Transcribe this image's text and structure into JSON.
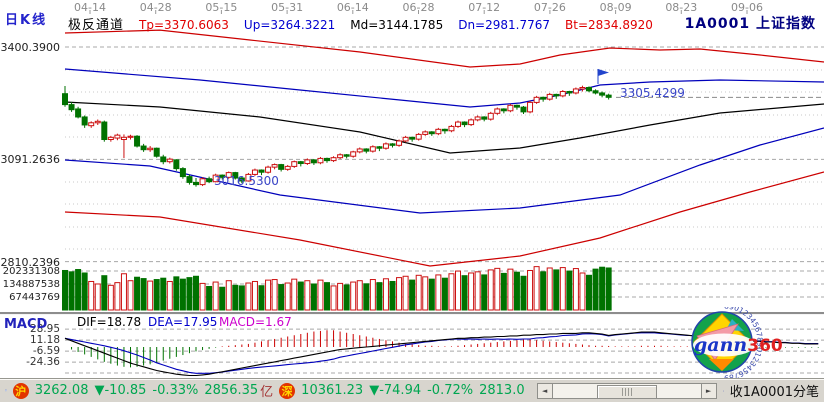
{
  "header": {
    "kline_label": "日K线",
    "channel_label": "极反通道",
    "params": [
      {
        "label": "Tp=3370.6063",
        "color": "#e00000"
      },
      {
        "label": "Up=3264.3221",
        "color": "#0000d0"
      },
      {
        "label": "Md=3144.1785",
        "color": "#000000"
      },
      {
        "label": "Dn=2981.7767",
        "color": "#0000d0"
      },
      {
        "label": "Bt=2834.8920",
        "color": "#e00000"
      }
    ],
    "symbol_code": "1A0001",
    "symbol_name": "上证指数"
  },
  "date_ruler": [
    "04-14",
    "04-28",
    "05-15",
    "05-31",
    "06-14",
    "06-28",
    "07-12",
    "07-26",
    "08-09",
    "08-23",
    "09-06"
  ],
  "price_axis_labels": [
    "3400.3900",
    "3091.2636",
    "2810.2396"
  ],
  "volume_axis_labels": [
    "202331308",
    "134887538",
    "67443769"
  ],
  "macd_header": {
    "title": "MACD",
    "dif": "DIF=18.78",
    "dea": "DEA=17.95",
    "macd": "MACD=1.67"
  },
  "macd_axis_labels": [
    "28.95",
    "11.18",
    "-6.59",
    "-24.36"
  ],
  "annotations": {
    "low_label": "3016.5300",
    "last_label": "3305.4299"
  },
  "status_bar": {
    "sh_badge": "沪",
    "sh_price": "3262.08",
    "sh_change": "▼-10.85",
    "sh_pct": "-0.33%",
    "sh_amount": "2856.35",
    "sh_unit": "亿",
    "sz_badge": "深",
    "sz_price": "10361.23",
    "sz_change": "▼-74.94",
    "sz_pct": "-0.72%",
    "sz_amount": "2813.0",
    "tail": "收1A0001分笔"
  },
  "logo": {
    "gann": "gann",
    "three_sixty": "360",
    "digits": "8901234567890123456789012345"
  },
  "colors": {
    "up": "#cc1111",
    "down": "#007200",
    "line_red": "#cc0000",
    "line_blue": "#0000bb",
    "line_black": "#000000",
    "grid_major": "#a8a8a8",
    "grid_minor": "#c9c9c9",
    "quote_green": "#00a651",
    "navy": "#000080",
    "annotation_blue": "#3a46c8"
  },
  "chart_data": {
    "type": "candlestick",
    "symbol": "1A0001",
    "title": "上证指数 日K线 极反通道",
    "x_dates": [
      "04-14",
      "04-28",
      "05-15",
      "05-31",
      "06-14",
      "06-28",
      "07-12",
      "07-26",
      "08-09",
      "08-23",
      "09-06"
    ],
    "price_ticks": [
      3400.39,
      3091.2636,
      2810.2396
    ],
    "volume_ticks": [
      202331308,
      134887538,
      67443769
    ],
    "macd_ticks": [
      28.95,
      11.18,
      -6.59,
      -24.36
    ],
    "low_annotation": 3016.53,
    "last_annotation": 3305.4299,
    "channel_params": {
      "Tp": 3370.6063,
      "Up": 3264.3221,
      "Md": 3144.1785,
      "Dn": 2981.7767,
      "Bt": 2834.892
    },
    "last_close_line": 3262.0,
    "candles": [
      [
        3272,
        3293,
        3236,
        3242
      ],
      [
        3242,
        3249,
        3222,
        3228
      ],
      [
        3230,
        3236,
        3204,
        3208
      ],
      [
        3208,
        3212,
        3178,
        3186
      ],
      [
        3184,
        3196,
        3178,
        3192
      ],
      [
        3192,
        3201,
        3186,
        3196
      ],
      [
        3194,
        3198,
        3140,
        3146
      ],
      [
        3146,
        3156,
        3140,
        3152
      ],
      [
        3150,
        3162,
        3144,
        3158
      ],
      [
        3146,
        3160,
        3095,
        3152
      ],
      [
        3152,
        3159,
        3146,
        3155
      ],
      [
        3155,
        3158,
        3124,
        3128
      ],
      [
        3128,
        3134,
        3112,
        3118
      ],
      [
        3118,
        3128,
        3112,
        3122
      ],
      [
        3122,
        3124,
        3096,
        3100
      ],
      [
        3098,
        3104,
        3078,
        3085
      ],
      [
        3085,
        3096,
        3080,
        3092
      ],
      [
        3090,
        3092,
        3060,
        3066
      ],
      [
        3066,
        3070,
        3038,
        3044
      ],
      [
        3044,
        3050,
        3022,
        3028
      ],
      [
        3028,
        3040,
        3016.53,
        3022
      ],
      [
        3022,
        3042,
        3018,
        3038
      ],
      [
        3038,
        3044,
        3026,
        3030
      ],
      [
        3030,
        3052,
        3028,
        3048
      ],
      [
        3048,
        3050,
        3036,
        3042
      ],
      [
        3042,
        3058,
        3038,
        3055
      ],
      [
        3055,
        3057,
        3036,
        3040
      ],
      [
        3040,
        3044,
        3026,
        3032
      ],
      [
        3032,
        3054,
        3030,
        3050
      ],
      [
        3050,
        3066,
        3046,
        3062
      ],
      [
        3062,
        3064,
        3048,
        3056
      ],
      [
        3056,
        3074,
        3052,
        3070
      ],
      [
        3070,
        3080,
        3064,
        3077
      ],
      [
        3077,
        3079,
        3058,
        3064
      ],
      [
        3064,
        3076,
        3060,
        3072
      ],
      [
        3072,
        3088,
        3068,
        3085
      ],
      [
        3085,
        3087,
        3072,
        3080
      ],
      [
        3080,
        3094,
        3076,
        3090
      ],
      [
        3090,
        3092,
        3076,
        3082
      ],
      [
        3082,
        3098,
        3078,
        3094
      ],
      [
        3094,
        3096,
        3082,
        3088
      ],
      [
        3088,
        3100,
        3084,
        3096
      ],
      [
        3096,
        3108,
        3092,
        3104
      ],
      [
        3104,
        3106,
        3094,
        3100
      ],
      [
        3100,
        3115,
        3096,
        3112
      ],
      [
        3112,
        3124,
        3108,
        3120
      ],
      [
        3120,
        3122,
        3108,
        3114
      ],
      [
        3114,
        3130,
        3110,
        3126
      ],
      [
        3126,
        3128,
        3114,
        3122
      ],
      [
        3122,
        3138,
        3118,
        3134
      ],
      [
        3134,
        3136,
        3124,
        3130
      ],
      [
        3130,
        3146,
        3126,
        3142
      ],
      [
        3142,
        3156,
        3138,
        3152
      ],
      [
        3152,
        3154,
        3140,
        3147
      ],
      [
        3147,
        3164,
        3143,
        3160
      ],
      [
        3160,
        3171,
        3156,
        3167
      ],
      [
        3167,
        3169,
        3156,
        3162
      ],
      [
        3162,
        3178,
        3158,
        3174
      ],
      [
        3174,
        3176,
        3162,
        3170
      ],
      [
        3170,
        3186,
        3166,
        3182
      ],
      [
        3182,
        3198,
        3178,
        3194
      ],
      [
        3194,
        3196,
        3180,
        3187
      ],
      [
        3187,
        3204,
        3183,
        3200
      ],
      [
        3200,
        3212,
        3196,
        3208
      ],
      [
        3208,
        3210,
        3196,
        3202
      ],
      [
        3202,
        3222,
        3198,
        3218
      ],
      [
        3218,
        3234,
        3214,
        3230
      ],
      [
        3230,
        3232,
        3218,
        3225
      ],
      [
        3225,
        3244,
        3221,
        3240
      ],
      [
        3240,
        3242,
        3228,
        3235
      ],
      [
        3235,
        3238,
        3216,
        3222
      ],
      [
        3222,
        3252,
        3218,
        3248
      ],
      [
        3248,
        3266,
        3244,
        3262
      ],
      [
        3262,
        3264,
        3250,
        3257
      ],
      [
        3257,
        3274,
        3253,
        3270
      ],
      [
        3270,
        3272,
        3258,
        3266
      ],
      [
        3266,
        3282,
        3262,
        3278
      ],
      [
        3278,
        3280,
        3266,
        3274
      ],
      [
        3274,
        3289,
        3270,
        3285
      ],
      [
        3285,
        3294,
        3278,
        3289
      ],
      [
        3289,
        3292,
        3276,
        3280
      ],
      [
        3280,
        3284,
        3270,
        3274
      ],
      [
        3274,
        3278,
        3262,
        3268
      ],
      [
        3268,
        3272,
        3256,
        3262
      ]
    ],
    "volumes_millions": [
      205,
      198,
      210,
      192,
      148,
      135,
      178,
      128,
      142,
      188,
      152,
      170,
      163,
      150,
      158,
      165,
      148,
      172,
      160,
      168,
      175,
      138,
      122,
      145,
      118,
      152,
      128,
      125,
      140,
      148,
      126,
      155,
      158,
      132,
      140,
      160,
      145,
      152,
      135,
      155,
      142,
      125,
      138,
      130,
      145,
      152,
      136,
      158,
      142,
      162,
      148,
      168,
      175,
      155,
      180,
      172,
      160,
      182,
      165,
      188,
      202,
      178,
      192,
      198,
      182,
      208,
      216,
      190,
      212,
      196,
      175,
      205,
      225,
      198,
      218,
      208,
      220,
      202,
      215,
      192,
      180,
      212,
      222,
      218
    ],
    "macd": {
      "dif": [
        14,
        10,
        6,
        2,
        -2,
        -6,
        -10,
        -14,
        -18,
        -22,
        -26,
        -29,
        -32,
        -35,
        -38,
        -40,
        -42,
        -44,
        -45,
        -46,
        -46,
        -45,
        -44,
        -42,
        -40,
        -38,
        -36,
        -34,
        -32,
        -30,
        -28,
        -26,
        -24,
        -22,
        -20,
        -18,
        -16,
        -14,
        -12,
        -10,
        -8,
        -6,
        -4,
        -3,
        -2,
        -1,
        0,
        1,
        2,
        3,
        4,
        5,
        6,
        7,
        8,
        9,
        10,
        11,
        12,
        13,
        14,
        14,
        15,
        15,
        16,
        16,
        17,
        17,
        18,
        18,
        19,
        19,
        20,
        20,
        21,
        21,
        22,
        22,
        22,
        23,
        23,
        22,
        21,
        18.78,
        20,
        21,
        22,
        23,
        24,
        24,
        24,
        23,
        22,
        21,
        20,
        19,
        18,
        17,
        16,
        15,
        14,
        13,
        12,
        11,
        10,
        9,
        9,
        8,
        8,
        7,
        7,
        6,
        6,
        5,
        5,
        5
      ],
      "hist": [
        0,
        -4,
        -8,
        -12,
        -16,
        -20,
        -24,
        -27,
        -30,
        -32,
        -33,
        -32,
        -30,
        -28,
        -25,
        -22,
        -19,
        -16,
        -13,
        -10,
        -7,
        -5,
        -3,
        -1,
        1,
        2,
        3,
        4,
        5,
        7,
        9,
        11,
        13,
        15,
        17,
        19,
        21,
        23,
        25,
        26,
        27,
        27,
        25,
        23,
        21,
        19,
        17,
        15,
        13,
        11,
        9,
        7,
        5,
        4,
        3,
        2,
        2,
        1,
        1,
        1,
        2,
        3,
        4,
        5,
        6,
        7,
        8,
        9,
        10,
        11,
        12,
        12,
        11,
        10,
        9,
        8,
        7,
        6,
        5,
        4,
        3,
        2,
        2,
        1.67,
        1,
        1,
        1,
        1,
        2,
        2,
        2,
        2,
        1,
        1,
        1,
        1,
        -1,
        -1,
        -1,
        -1,
        -2,
        -2,
        -2,
        -2,
        -2,
        -2,
        -1,
        -1,
        -1,
        -1,
        -1,
        -1,
        -1,
        -1,
        -1,
        -1
      ],
      "last": {
        "dif": 18.78,
        "dea": 17.95,
        "macd": 1.67
      }
    },
    "channel_lines": {
      "tp": [
        [
          65,
          3438.9
        ],
        [
          160,
          3447.0
        ],
        [
          250,
          3419.6
        ],
        [
          360,
          3386.6
        ],
        [
          470,
          3345.4
        ],
        [
          520,
          3353.6
        ],
        [
          560,
          3378.4
        ],
        [
          610,
          3397.6
        ],
        [
          660,
          3392.1
        ],
        [
          700,
          3394.9
        ],
        [
          760,
          3378.4
        ],
        [
          824,
          3359.1
        ]
      ],
      "up": [
        [
          65,
          3339.9
        ],
        [
          200,
          3309.6
        ],
        [
          300,
          3282.1
        ],
        [
          400,
          3254.6
        ],
        [
          470,
          3235.4
        ],
        [
          520,
          3246.4
        ],
        [
          560,
          3268.4
        ],
        [
          600,
          3295.9
        ],
        [
          650,
          3304.1
        ],
        [
          720,
          3309.6
        ],
        [
          824,
          3304.1
        ]
      ],
      "md": [
        [
          65,
          3249.1
        ],
        [
          160,
          3235.4
        ],
        [
          260,
          3207.9
        ],
        [
          360,
          3166.6
        ],
        [
          450,
          3108.9
        ],
        [
          520,
          3122.6
        ],
        [
          580,
          3150.1
        ],
        [
          650,
          3185.9
        ],
        [
          720,
          3218.9
        ],
        [
          824,
          3243.6
        ]
      ],
      "dn": [
        [
          65,
          3089.6
        ],
        [
          150,
          3073.1
        ],
        [
          280,
          2993.4
        ],
        [
          420,
          2943.9
        ],
        [
          520,
          2957.6
        ],
        [
          620,
          2993.4
        ],
        [
          700,
          3075.9
        ],
        [
          760,
          3130.9
        ],
        [
          824,
          3177.6
        ]
      ],
      "bt": [
        [
          65,
          2946.6
        ],
        [
          160,
          2932.9
        ],
        [
          300,
          2869.6
        ],
        [
          430,
          2798.1
        ],
        [
          520,
          2825.6
        ],
        [
          600,
          2875.1
        ],
        [
          680,
          2946.6
        ],
        [
          750,
          3001.6
        ],
        [
          824,
          3056.6
        ]
      ]
    }
  }
}
